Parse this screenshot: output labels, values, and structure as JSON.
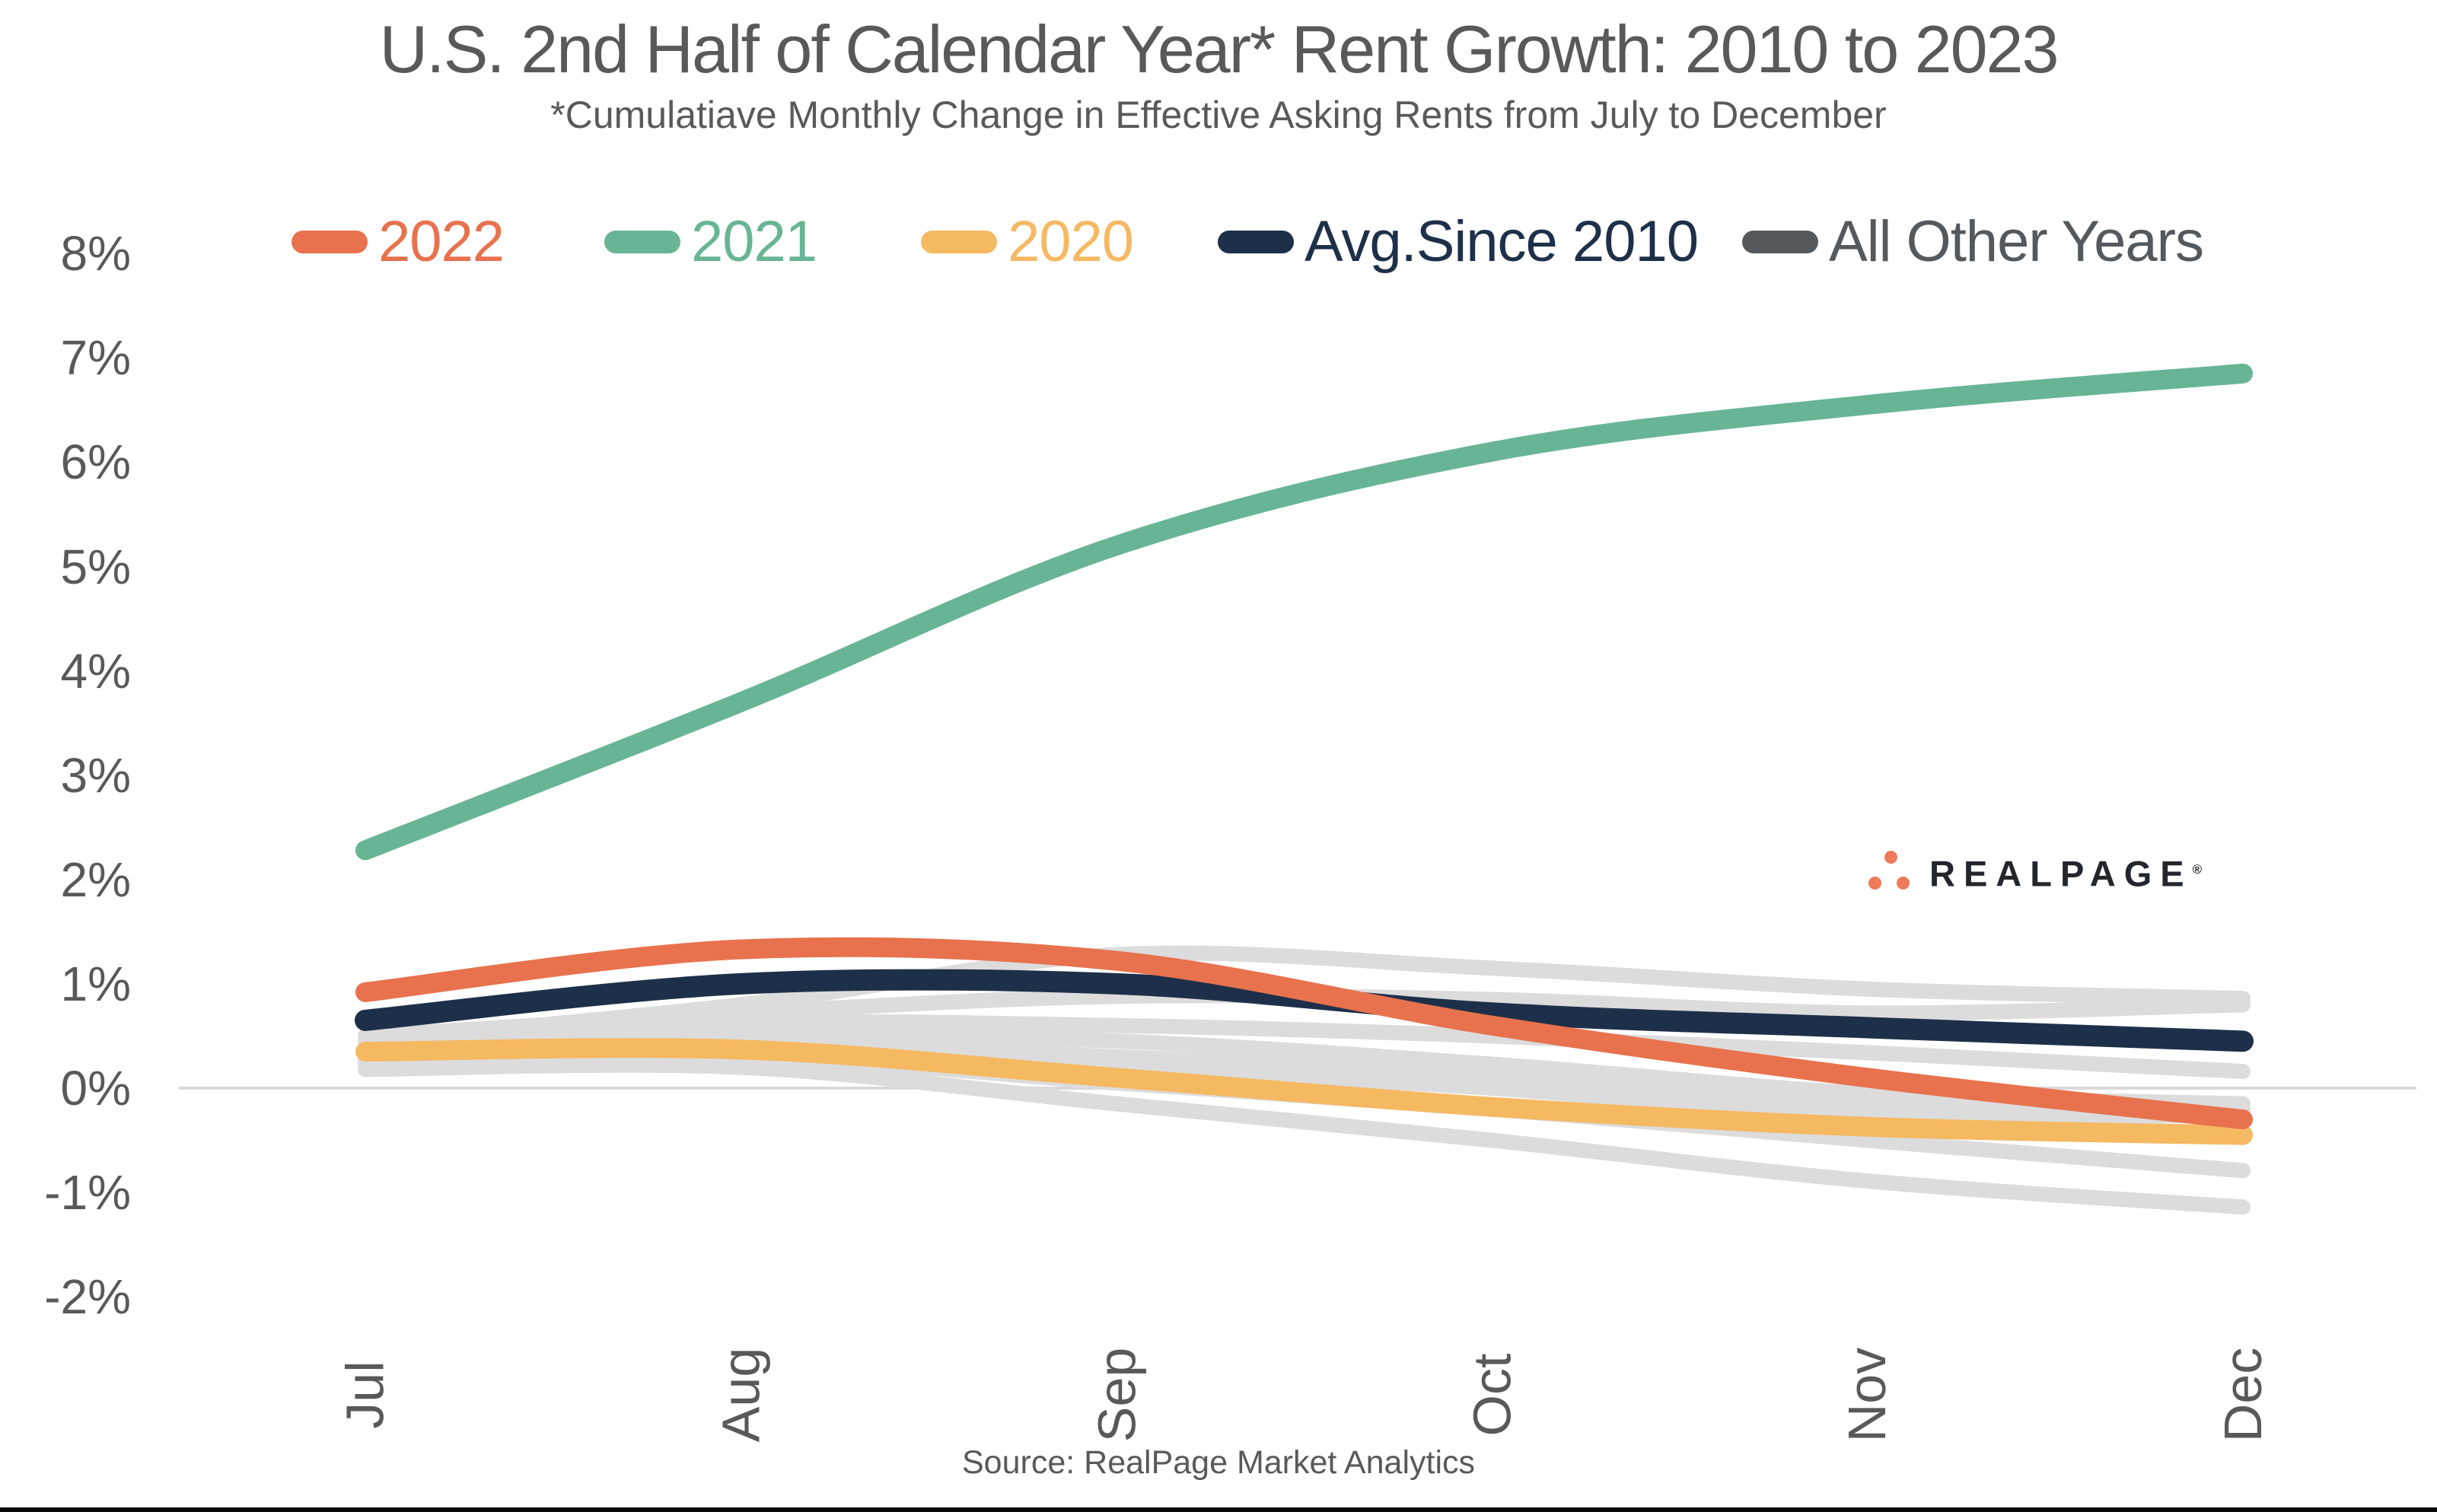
{
  "title": "U.S. 2nd Half of Calendar Year* Rent Growth: 2010 to 2023",
  "subtitle": "*Cumulatiave Monthly Change in Effective Asking Rents from July to December",
  "source": "Source: RealPage Market Analytics",
  "brand": {
    "name": "REALPAGE",
    "reg": "®",
    "dot_color": "#EE7A59",
    "text_color": "#23262C"
  },
  "colors": {
    "text": "#595959",
    "grid": "#D9D9D9",
    "series_2022": "#E8724E",
    "series_2021": "#68B595",
    "series_2020": "#F5B962",
    "series_avg": "#1E3049",
    "series_other": "#DCDCDC",
    "legend_gray": "#54595D",
    "bottom_bar": "#0B0B0B"
  },
  "legend": {
    "items": [
      {
        "label": "2022",
        "color": "#E8724E",
        "x": 383
      },
      {
        "label": "2021",
        "color": "#68B595",
        "x": 794
      },
      {
        "label": "2020",
        "color": "#F5B962",
        "x": 1210
      },
      {
        "label": "Avg.Since 2010",
        "color": "#1E3049",
        "x": 1600
      },
      {
        "label": "All Other Years",
        "color": "#54595D",
        "x": 2289
      }
    ]
  },
  "y_axis": {
    "ticks": [
      {
        "label": "8%",
        "value": 8
      },
      {
        "label": "7%",
        "value": 7
      },
      {
        "label": "6%",
        "value": 6
      },
      {
        "label": "5%",
        "value": 5
      },
      {
        "label": "4%",
        "value": 4
      },
      {
        "label": "3%",
        "value": 3
      },
      {
        "label": "2%",
        "value": 2
      },
      {
        "label": "1%",
        "value": 1
      },
      {
        "label": "0%",
        "value": 0
      },
      {
        "label": "-1%",
        "value": -1
      },
      {
        "label": "-2%",
        "value": -2
      }
    ]
  },
  "chart_data": {
    "type": "line",
    "x": [
      "Jul",
      "Aug",
      "Sep",
      "Oct",
      "Nov",
      "Dec"
    ],
    "xlabel": "",
    "ylabel": "",
    "ylim": [
      -2,
      8
    ],
    "grid": "zero-line-only",
    "legend_position": "top",
    "series": [
      {
        "name": "2022",
        "color": "#E8724E",
        "values": [
          0.92,
          1.33,
          1.22,
          0.6,
          0.1,
          -0.3
        ]
      },
      {
        "name": "2021",
        "color": "#68B595",
        "values": [
          2.28,
          3.7,
          5.2,
          6.1,
          6.55,
          6.85
        ]
      },
      {
        "name": "2020",
        "color": "#F5B962",
        "values": [
          0.35,
          0.37,
          0.1,
          -0.18,
          -0.37,
          -0.45
        ]
      },
      {
        "name": "Avg.Since 2010",
        "color": "#1E3049",
        "values": [
          0.65,
          1.0,
          1.0,
          0.72,
          0.58,
          0.45
        ]
      },
      {
        "name": "All Other Years",
        "color": "#DCDCDC",
        "lines": [
          [
            0.45,
            0.8,
            1.28,
            1.15,
            0.95,
            0.86
          ],
          [
            0.5,
            0.72,
            0.88,
            0.85,
            0.72,
            0.8
          ],
          [
            0.38,
            0.62,
            0.6,
            0.5,
            0.34,
            0.16
          ],
          [
            0.32,
            0.5,
            0.45,
            0.23,
            -0.05,
            -0.15
          ],
          [
            0.28,
            0.42,
            0.3,
            0.13,
            -0.15,
            -0.2
          ],
          [
            0.25,
            0.35,
            0.18,
            0.0,
            -0.28,
            -0.25
          ],
          [
            0.22,
            0.3,
            0.05,
            -0.2,
            -0.5,
            -0.79
          ],
          [
            0.18,
            0.2,
            -0.15,
            -0.5,
            -0.89,
            -1.14
          ]
        ]
      }
    ]
  }
}
